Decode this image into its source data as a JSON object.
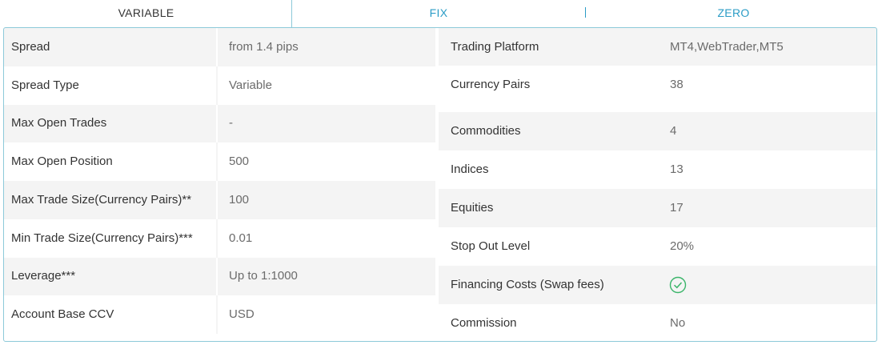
{
  "tabs": [
    "VARIABLE",
    "FIX",
    "ZERO"
  ],
  "left_table": {
    "rows": [
      {
        "label": "Spread",
        "value": "from 1.4 pips"
      },
      {
        "label": "Spread Type",
        "value": "Variable"
      },
      {
        "label": "Max Open Trades",
        "value": "-"
      },
      {
        "label": "Max Open Position",
        "value": "500"
      },
      {
        "label": "Max Trade Size(Currency Pairs)**",
        "value": "100"
      },
      {
        "label": "Min Trade Size(Currency Pairs)***",
        "value": "0.01"
      },
      {
        "label": "Leverage***",
        "value": "Up to 1:1000"
      },
      {
        "label": "Account Base CCV",
        "value": "USD"
      }
    ]
  },
  "right_table": {
    "rows": [
      {
        "label": "Trading Platform",
        "value": "MT4,WebTrader,MT5"
      },
      {
        "label": "Currency Pairs",
        "value": "38"
      },
      {
        "label": "Commodities",
        "value": "4"
      },
      {
        "label": "Indices",
        "value": "13"
      },
      {
        "label": "Equities",
        "value": "17"
      },
      {
        "label": "Stop Out Level",
        "value": "20%"
      },
      {
        "label": "Financing Costs (Swap fees)"
      },
      {
        "label": "Commission",
        "value": "No"
      }
    ]
  }
}
